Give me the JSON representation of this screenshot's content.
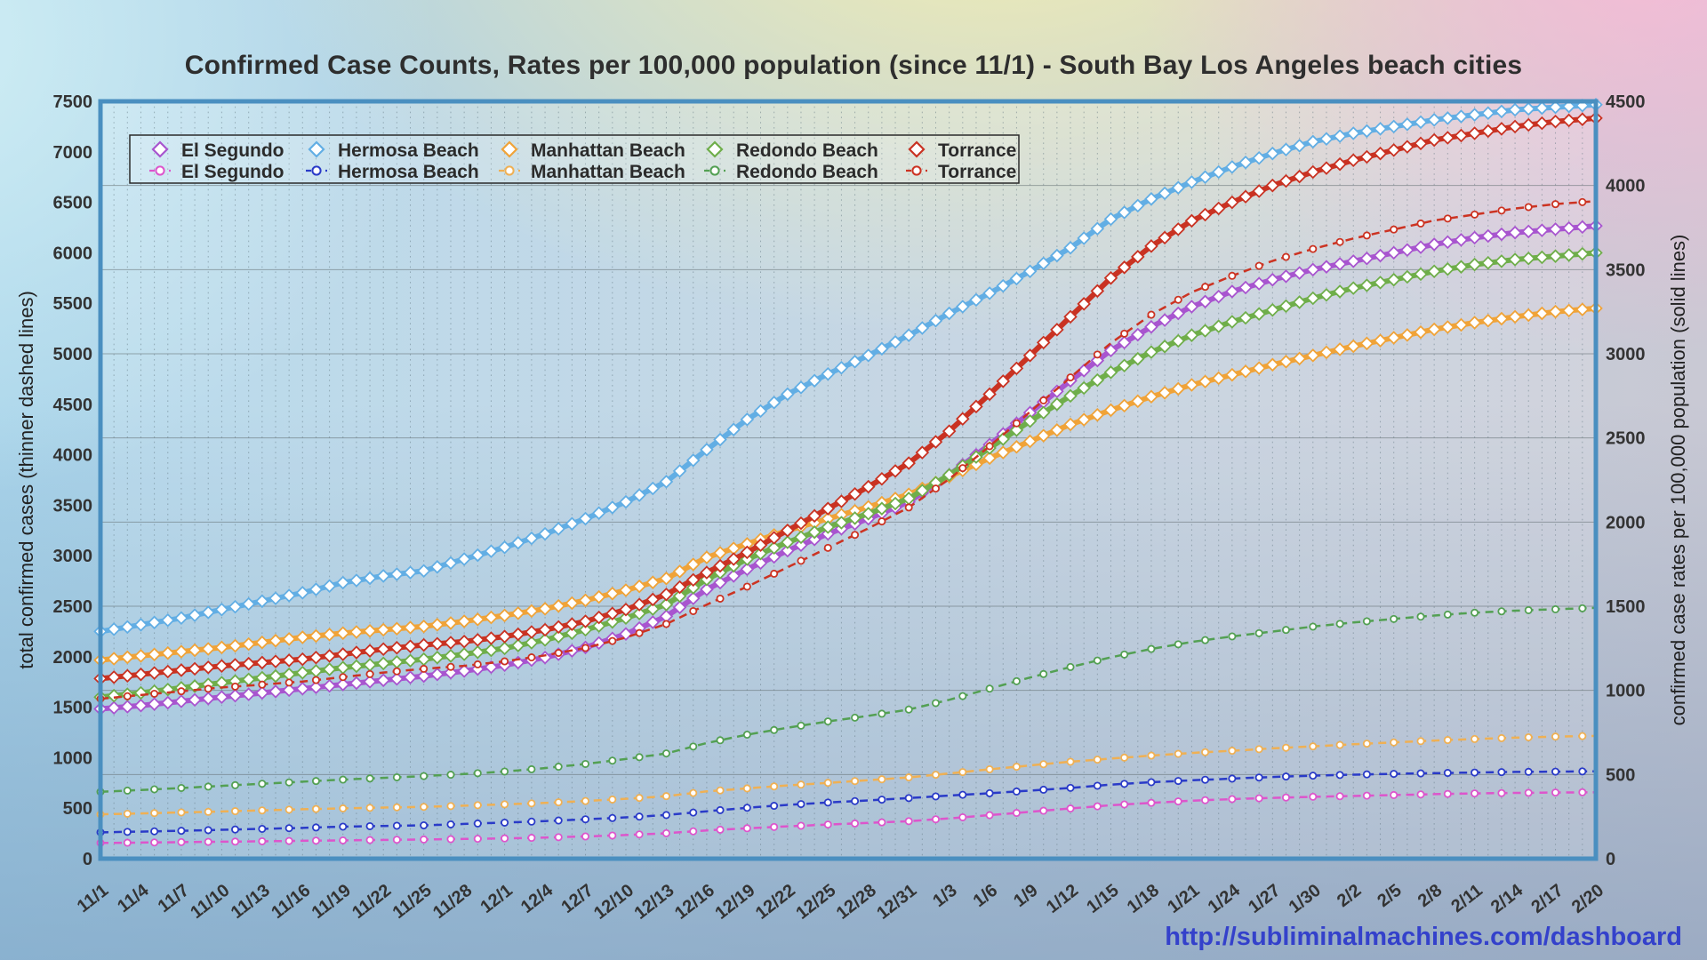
{
  "title": "Confirmed Case Counts, Rates per 100,000 population (since 11/1) - South Bay Los Angeles beach cities",
  "footer_url": "http://subliminalmachines.com/dashboard",
  "colors": {
    "plot_border": "#4a8fc0",
    "gridline": "#6c7a80",
    "title_text": "#2e2e2e",
    "url_text": "#3441cb",
    "tick_text": "#333333"
  },
  "chart_data": {
    "type": "line",
    "title": "Confirmed Case Counts, Rates per 100,000 population (since 11/1) - South Bay Los Angeles beach cities",
    "x_labels": [
      "11/1",
      "11/4",
      "11/7",
      "11/10",
      "11/13",
      "11/16",
      "11/19",
      "11/22",
      "11/25",
      "11/28",
      "12/1",
      "12/4",
      "12/7",
      "12/10",
      "12/13",
      "12/16",
      "12/19",
      "12/22",
      "12/25",
      "12/28",
      "12/31",
      "1/3",
      "1/6",
      "1/9",
      "1/12",
      "1/15",
      "1/18",
      "1/21",
      "1/24",
      "1/27",
      "1/30",
      "2/2",
      "2/5",
      "2/8",
      "2/11",
      "2/14",
      "2/17",
      "2/20"
    ],
    "x_label_interval_days": 3,
    "axes": {
      "left": {
        "title": "total confirmed cases (thinner dashed lines)",
        "min": 0,
        "max": 7500,
        "tick_step": 500
      },
      "right": {
        "title": "confirmed case rates per 100,000 population (solid lines)",
        "min": 0,
        "max": 4500,
        "tick_step": 500
      }
    },
    "legend": {
      "position": "top-left",
      "row1_style": "solid",
      "row2_style": "dashed"
    },
    "grid": {
      "horizontal_lines_axis": "right",
      "vertical_dotted_per_day": true
    },
    "series": [
      {
        "name": "El Segundo",
        "style": "solid",
        "axis": "right",
        "color": "#a855cf",
        "marker": "diamond",
        "values": [
          890,
          910,
          935,
          960,
          985,
          1010,
          1035,
          1060,
          1085,
          1115,
          1150,
          1195,
          1255,
          1335,
          1440,
          1600,
          1720,
          1830,
          1930,
          2020,
          2120,
          2280,
          2460,
          2650,
          2840,
          3020,
          3160,
          3280,
          3370,
          3440,
          3500,
          3550,
          3600,
          3650,
          3690,
          3720,
          3740,
          3760
        ]
      },
      {
        "name": "Hermosa Beach",
        "style": "solid",
        "axis": "right",
        "color": "#62aee4",
        "marker": "diamond",
        "values": [
          1350,
          1390,
          1430,
          1480,
          1530,
          1580,
          1640,
          1680,
          1710,
          1780,
          1850,
          1930,
          2020,
          2120,
          2240,
          2430,
          2610,
          2760,
          2880,
          2990,
          3110,
          3240,
          3360,
          3490,
          3630,
          3800,
          3920,
          4020,
          4110,
          4190,
          4260,
          4310,
          4350,
          4390,
          4420,
          4450,
          4465,
          4480
        ]
      },
      {
        "name": "Manhattan Beach",
        "style": "solid",
        "axis": "right",
        "color": "#f0a338",
        "marker": "diamond",
        "values": [
          1180,
          1205,
          1230,
          1255,
          1285,
          1315,
          1340,
          1360,
          1380,
          1410,
          1445,
          1485,
          1535,
          1595,
          1665,
          1790,
          1870,
          1950,
          2020,
          2090,
          2165,
          2270,
          2380,
          2480,
          2580,
          2665,
          2745,
          2815,
          2875,
          2935,
          2990,
          3045,
          3095,
          3145,
          3185,
          3220,
          3250,
          3270
        ]
      },
      {
        "name": "Redondo Beach",
        "style": "solid",
        "axis": "right",
        "color": "#6fae4a",
        "marker": "diamond",
        "values": [
          960,
          985,
          1015,
          1045,
          1075,
          1105,
          1135,
          1160,
          1185,
          1215,
          1250,
          1300,
          1360,
          1430,
          1510,
          1660,
          1780,
          1880,
          1970,
          2050,
          2140,
          2280,
          2440,
          2600,
          2750,
          2890,
          3010,
          3110,
          3190,
          3260,
          3330,
          3390,
          3440,
          3490,
          3530,
          3560,
          3580,
          3600
        ]
      },
      {
        "name": "Torrance",
        "style": "solid",
        "axis": "right",
        "color": "#c93222",
        "marker": "diamond",
        "values": [
          1070,
          1095,
          1120,
          1145,
          1165,
          1185,
          1215,
          1245,
          1270,
          1290,
          1320,
          1360,
          1410,
          1480,
          1570,
          1700,
          1820,
          1950,
          2080,
          2210,
          2350,
          2540,
          2760,
          2990,
          3220,
          3450,
          3640,
          3790,
          3900,
          4000,
          4080,
          4150,
          4210,
          4270,
          4310,
          4350,
          4380,
          4400
        ]
      },
      {
        "name": "El Segundo",
        "style": "dashed",
        "axis": "left",
        "color": "#dd55cc",
        "marker": "circle",
        "values": [
          156,
          159,
          164,
          168,
          172,
          177,
          181,
          186,
          190,
          195,
          201,
          209,
          220,
          234,
          252,
          280,
          301,
          320,
          338,
          354,
          371,
          399,
          431,
          464,
          497,
          529,
          553,
          574,
          590,
          602,
          613,
          621,
          630,
          639,
          646,
          651,
          655,
          658
        ]
      },
      {
        "name": "Hermosa Beach",
        "style": "dashed",
        "axis": "left",
        "color": "#2a3bc8",
        "marker": "circle",
        "values": [
          261,
          268,
          276,
          286,
          295,
          305,
          317,
          324,
          330,
          344,
          357,
          372,
          390,
          409,
          432,
          469,
          504,
          533,
          556,
          577,
          600,
          625,
          648,
          674,
          701,
          733,
          757,
          776,
          793,
          809,
          822,
          832,
          840,
          847,
          853,
          859,
          862,
          865
        ]
      },
      {
        "name": "Manhattan Beach",
        "style": "dashed",
        "axis": "left",
        "color": "#efb054",
        "marker": "circle",
        "values": [
          439,
          448,
          458,
          467,
          478,
          489,
          498,
          506,
          513,
          525,
          538,
          552,
          571,
          593,
          619,
          666,
          696,
          725,
          751,
          777,
          805,
          844,
          885,
          923,
          960,
          991,
          1021,
          1047,
          1069,
          1092,
          1112,
          1133,
          1151,
          1170,
          1185,
          1198,
          1209,
          1216
        ]
      },
      {
        "name": "Redondo Beach",
        "style": "dashed",
        "axis": "left",
        "color": "#53a053",
        "marker": "circle",
        "values": [
          662,
          680,
          700,
          721,
          742,
          762,
          783,
          800,
          818,
          838,
          863,
          897,
          938,
          987,
          1042,
          1145,
          1228,
          1297,
          1359,
          1415,
          1477,
          1573,
          1684,
          1794,
          1898,
          1994,
          2077,
          2146,
          2201,
          2249,
          2298,
          2339,
          2374,
          2408,
          2436,
          2456,
          2470,
          2484
        ]
      },
      {
        "name": "Torrance",
        "style": "dashed",
        "axis": "left",
        "color": "#cc3322",
        "marker": "circle",
        "values": [
          1584,
          1621,
          1658,
          1695,
          1724,
          1754,
          1798,
          1843,
          1880,
          1909,
          1954,
          2013,
          2087,
          2190,
          2324,
          2516,
          2694,
          2886,
          3078,
          3271,
          3478,
          3759,
          4085,
          4425,
          4766,
          5106,
          5387,
          5609,
          5772,
          5920,
          6038,
          6142,
          6231,
          6320,
          6379,
          6438,
          6482,
          6512
        ]
      }
    ]
  }
}
